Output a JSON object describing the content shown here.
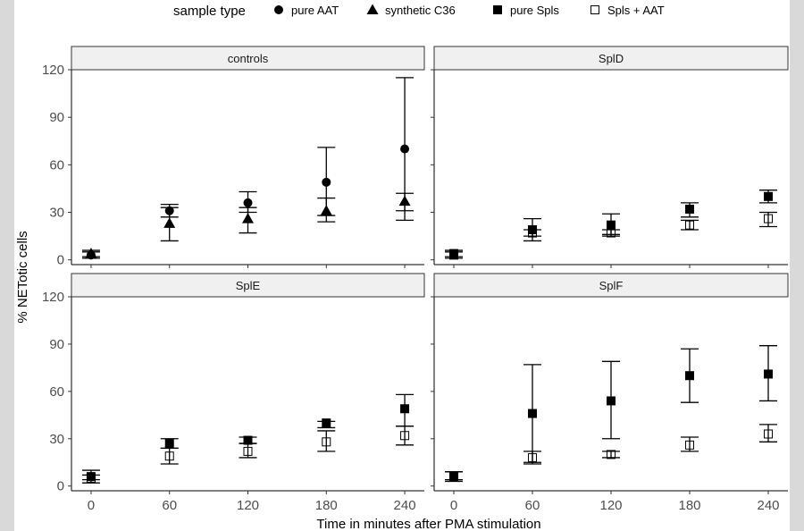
{
  "chart_data": {
    "type": "scatter",
    "subtype": "faceted point plot with error bars",
    "xlabel": "Time in minutes after PMA stimulation",
    "ylabel": "% NETotic cells",
    "x_ticks": [
      0,
      60,
      120,
      180,
      240
    ],
    "y_ticks": [
      0,
      30,
      60,
      90,
      120
    ],
    "xlim": [
      -15,
      255
    ],
    "ylim": [
      -3,
      120
    ],
    "legend": {
      "title": "sample type",
      "placement": "top",
      "items": [
        {
          "name": "pure AAT",
          "shape": "circle"
        },
        {
          "name": "synthetic C36",
          "shape": "triangle"
        },
        {
          "name": "pure Spls",
          "shape": "square-filled"
        },
        {
          "name": "Spls + AAT",
          "shape": "square-open"
        }
      ]
    },
    "panels": [
      {
        "title": "controls",
        "series": [
          {
            "name": "pure AAT",
            "points": [
              {
                "x": 0,
                "y": 3,
                "lo": 1,
                "hi": 5
              },
              {
                "x": 60,
                "y": 31,
                "lo": 27,
                "hi": 35
              },
              {
                "x": 120,
                "y": 36,
                "lo": 30,
                "hi": 43
              },
              {
                "x": 180,
                "y": 49,
                "lo": 28,
                "hi": 71
              },
              {
                "x": 240,
                "y": 70,
                "lo": 25,
                "hi": 115
              }
            ]
          },
          {
            "name": "synthetic C36",
            "points": [
              {
                "x": 0,
                "y": 4,
                "lo": 2,
                "hi": 6
              },
              {
                "x": 60,
                "y": 23,
                "lo": 12,
                "hi": 33
              },
              {
                "x": 120,
                "y": 26,
                "lo": 17,
                "hi": 33
              },
              {
                "x": 180,
                "y": 31,
                "lo": 24,
                "hi": 39
              },
              {
                "x": 240,
                "y": 37,
                "lo": 31,
                "hi": 42
              }
            ]
          }
        ]
      },
      {
        "title": "SplD",
        "series": [
          {
            "name": "pure Spls",
            "points": [
              {
                "x": 0,
                "y": 3,
                "lo": 1,
                "hi": 5
              },
              {
                "x": 60,
                "y": 19,
                "lo": 12,
                "hi": 26
              },
              {
                "x": 120,
                "y": 22,
                "lo": 16,
                "hi": 29
              },
              {
                "x": 180,
                "y": 32,
                "lo": 27,
                "hi": 36
              },
              {
                "x": 240,
                "y": 40,
                "lo": 36,
                "hi": 44
              }
            ]
          },
          {
            "name": "Spls + AAT",
            "points": [
              {
                "x": 0,
                "y": 4,
                "lo": 2,
                "hi": 6
              },
              {
                "x": 60,
                "y": 17,
                "lo": 15,
                "hi": 19
              },
              {
                "x": 120,
                "y": 17,
                "lo": 15,
                "hi": 19
              },
              {
                "x": 180,
                "y": 22,
                "lo": 19,
                "hi": 25
              },
              {
                "x": 240,
                "y": 26,
                "lo": 21,
                "hi": 30
              }
            ]
          }
        ]
      },
      {
        "title": "SplE",
        "series": [
          {
            "name": "pure Spls",
            "points": [
              {
                "x": 0,
                "y": 6,
                "lo": 4,
                "hi": 10
              },
              {
                "x": 60,
                "y": 27,
                "lo": 24,
                "hi": 30
              },
              {
                "x": 120,
                "y": 29,
                "lo": 27,
                "hi": 31
              },
              {
                "x": 180,
                "y": 40,
                "lo": 37,
                "hi": 41
              },
              {
                "x": 240,
                "y": 49,
                "lo": 38,
                "hi": 58
              }
            ]
          },
          {
            "name": "Spls + AAT",
            "points": [
              {
                "x": 0,
                "y": 5,
                "lo": 2,
                "hi": 7
              },
              {
                "x": 60,
                "y": 19,
                "lo": 14,
                "hi": 24
              },
              {
                "x": 120,
                "y": 22,
                "lo": 18,
                "hi": 27
              },
              {
                "x": 180,
                "y": 28,
                "lo": 22,
                "hi": 35
              },
              {
                "x": 240,
                "y": 32,
                "lo": 26,
                "hi": 38
              }
            ]
          }
        ]
      },
      {
        "title": "SplF",
        "series": [
          {
            "name": "pure Spls",
            "points": [
              {
                "x": 0,
                "y": 6,
                "lo": 4,
                "hi": 9
              },
              {
                "x": 60,
                "y": 46,
                "lo": 15,
                "hi": 77
              },
              {
                "x": 120,
                "y": 54,
                "lo": 30,
                "hi": 79
              },
              {
                "x": 180,
                "y": 70,
                "lo": 53,
                "hi": 87
              },
              {
                "x": 240,
                "y": 71,
                "lo": 54,
                "hi": 89
              }
            ]
          },
          {
            "name": "Spls + AAT",
            "points": [
              {
                "x": 0,
                "y": 6,
                "lo": 3,
                "hi": 9
              },
              {
                "x": 60,
                "y": 18,
                "lo": 14,
                "hi": 22
              },
              {
                "x": 120,
                "y": 20,
                "lo": 18,
                "hi": 22
              },
              {
                "x": 180,
                "y": 26,
                "lo": 22,
                "hi": 31
              },
              {
                "x": 240,
                "y": 33,
                "lo": 28,
                "hi": 39
              }
            ]
          }
        ]
      }
    ]
  }
}
